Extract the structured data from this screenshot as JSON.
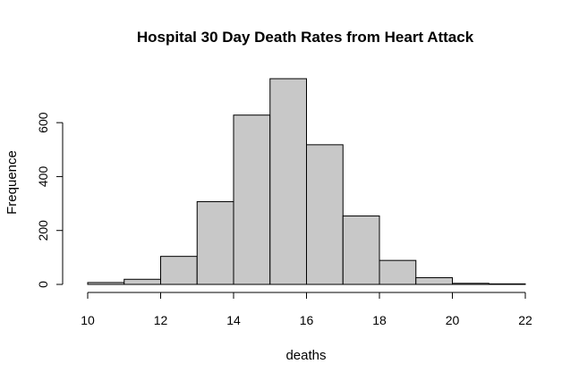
{
  "chart_data": {
    "type": "bar",
    "title": "Hospital 30 Day Death Rates from Heart Attack",
    "xlabel": "deaths",
    "ylabel": "Frequence",
    "bins": [
      {
        "start": 10,
        "end": 11,
        "count": 7
      },
      {
        "start": 11,
        "end": 12,
        "count": 19
      },
      {
        "start": 12,
        "end": 13,
        "count": 104
      },
      {
        "start": 13,
        "end": 14,
        "count": 307
      },
      {
        "start": 14,
        "end": 15,
        "count": 628
      },
      {
        "start": 15,
        "end": 16,
        "count": 763
      },
      {
        "start": 16,
        "end": 17,
        "count": 518
      },
      {
        "start": 17,
        "end": 18,
        "count": 254
      },
      {
        "start": 18,
        "end": 19,
        "count": 89
      },
      {
        "start": 19,
        "end": 20,
        "count": 25
      },
      {
        "start": 20,
        "end": 21,
        "count": 4
      },
      {
        "start": 21,
        "end": 22,
        "count": 2
      }
    ],
    "x_ticks": [
      10,
      12,
      14,
      16,
      18,
      20,
      22
    ],
    "y_ticks": [
      0,
      200,
      400,
      600
    ],
    "xlim": [
      10,
      22
    ],
    "ylim": [
      0,
      763
    ],
    "grid": false,
    "legend": "none"
  }
}
